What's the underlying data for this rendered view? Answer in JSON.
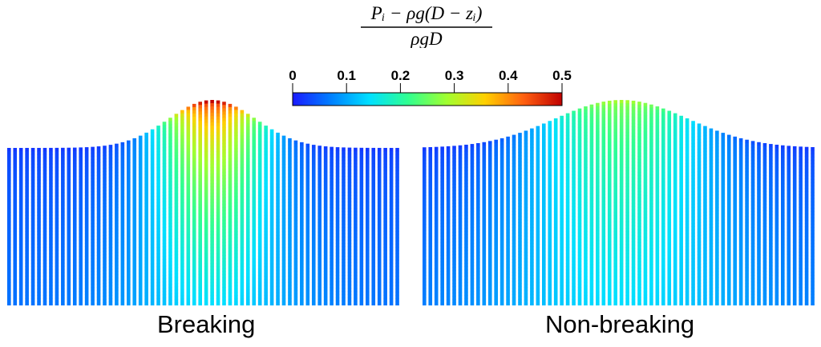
{
  "formula": {
    "numerator": "Pᵢ − ρg(D − zᵢ)",
    "denominator": "ρgD"
  },
  "colorbar": {
    "ticks": [
      "0",
      "0.1",
      "0.2",
      "0.3",
      "0.4",
      "0.5"
    ],
    "range": [
      0,
      0.5
    ],
    "colormap": [
      "#1a1aff",
      "#0080ff",
      "#00e0ff",
      "#30ff90",
      "#a0ff30",
      "#ffd000",
      "#ff6010",
      "#c00000"
    ]
  },
  "panels": [
    {
      "label": "Breaking",
      "column_count": 66,
      "crest_index": 34,
      "crest_width": 26,
      "max_value": 0.5,
      "edge_value": 0.02,
      "deep_value": 0.12
    },
    {
      "label": "Non-breaking",
      "column_count": 66,
      "crest_index": 33,
      "crest_width": 40,
      "max_value": 0.29,
      "edge_value": 0.02,
      "deep_value": 0.12
    }
  ]
}
